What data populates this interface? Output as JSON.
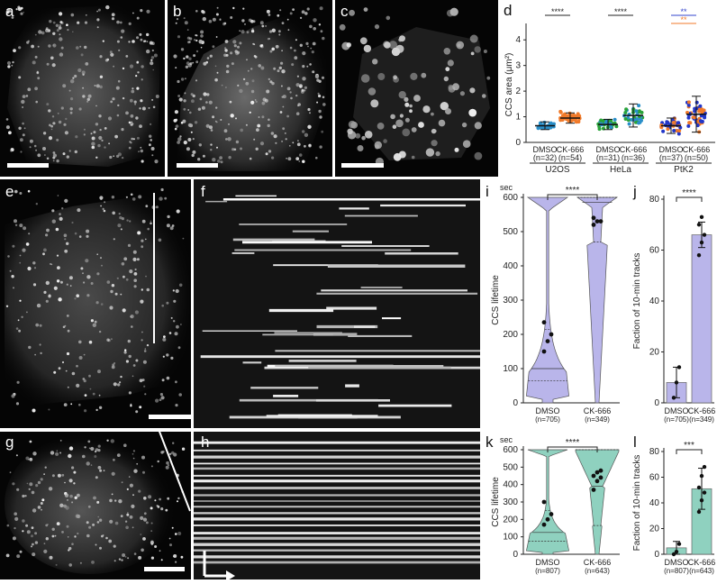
{
  "panel_labels": {
    "a": "a",
    "b": "b",
    "c": "c",
    "d": "d",
    "e": "e",
    "f": "f",
    "g": "g",
    "h": "h",
    "i": "i",
    "j": "j",
    "k": "k",
    "l": "l"
  },
  "colors": {
    "dmso_d": "#2a8fc9",
    "ck666_d": "#f07a2a",
    "green": "#29a339",
    "blue": "#2236c8",
    "violin_i": "#b9b5ea",
    "violin_k": "#8fd1bf",
    "bar_j": "#b9b5ea",
    "bar_l": "#8fd1bf",
    "sig_blue": "#3344cc",
    "sig_orange": "#f07a2a"
  },
  "chart_data": [
    {
      "id": "d",
      "type": "scatter",
      "ylabel": "CCS area (μm²)",
      "ylim": [
        0,
        4.5
      ],
      "yticks": [
        "0",
        "1",
        "2",
        "3",
        "4"
      ],
      "groups": [
        {
          "label": "U2OS",
          "conditions": [
            {
              "name": "DMSO",
              "n": "(n=32)",
              "mean": 0.65,
              "sd": 0.15,
              "count": 32,
              "color": "#2a8fc9"
            },
            {
              "name": "CK-666",
              "n": "(n=54)",
              "mean": 0.95,
              "sd": 0.2,
              "count": 54,
              "color": "#f07a2a"
            }
          ],
          "sig": "****"
        },
        {
          "label": "HeLa",
          "conditions": [
            {
              "name": "DMSO",
              "n": "(n=31)",
              "mean": 0.7,
              "sd": 0.2,
              "count": 31,
              "color": "#29a339"
            },
            {
              "name": "CK-666",
              "n": "(n=36)",
              "mean": 1.05,
              "sd": 0.45,
              "count": 36,
              "color": "#29a339"
            }
          ],
          "sig": "****"
        },
        {
          "label": "PtK2",
          "conditions": [
            {
              "name": "DMSO",
              "n": "(n=37)",
              "mean": 0.65,
              "sd": 0.3,
              "count": 37,
              "color": "#2236c8"
            },
            {
              "name": "CK-666",
              "n": "(n=50)",
              "mean": 1.1,
              "sd": 0.7,
              "count": 50,
              "color": "#2236c8"
            }
          ],
          "sig_blue": "**",
          "sig_orange": "**"
        }
      ]
    },
    {
      "id": "i",
      "type": "violin",
      "unit": "sec",
      "ylabel": "CCS lifetime",
      "ylim": [
        0,
        600
      ],
      "yticks": [
        "0",
        "100",
        "200",
        "300",
        "400",
        "500",
        "600"
      ],
      "categories": [
        "DMSO",
        "CK-666"
      ],
      "n": [
        "(n=705)",
        "(n=349)"
      ],
      "sig": "****",
      "quartiles": [
        [
          65,
          100,
          215
        ],
        [
          470,
          585,
          600
        ]
      ],
      "dots": [
        [
          150,
          180,
          200,
          235
        ],
        [
          520,
          530,
          530,
          540
        ]
      ]
    },
    {
      "id": "j",
      "type": "bar",
      "ylabel": "Faction of 10-min tracks",
      "ylim": [
        0,
        80
      ],
      "yticks": [
        "0",
        "20",
        "40",
        "60",
        "80"
      ],
      "categories": [
        "DMSO",
        "CK-666"
      ],
      "n": [
        "(n=705)",
        "(n=349)"
      ],
      "sig": "****",
      "values": [
        8,
        66
      ],
      "errors": [
        6,
        5
      ],
      "points": [
        [
          2,
          8,
          14
        ],
        [
          58,
          63,
          66,
          70,
          73
        ]
      ]
    },
    {
      "id": "k",
      "type": "violin",
      "unit": "sec",
      "ylabel": "CCS lifetime",
      "ylim": [
        0,
        600
      ],
      "yticks": [
        "0",
        "100",
        "200",
        "300",
        "400",
        "500",
        "600"
      ],
      "categories": [
        "DMSO",
        "CK-666"
      ],
      "n": [
        "(n=807)",
        "(n=643)"
      ],
      "sig": "****",
      "quartiles": [
        [
          75,
          125,
          250
        ],
        [
          165,
          390,
          600
        ]
      ],
      "dots": [
        [
          170,
          200,
          230,
          300
        ],
        [
          370,
          420,
          440,
          450,
          470,
          480
        ]
      ]
    },
    {
      "id": "l",
      "type": "bar",
      "ylabel": "Faction of 10-min tracks",
      "ylim": [
        0,
        80
      ],
      "yticks": [
        "0",
        "20",
        "40",
        "60",
        "80"
      ],
      "categories": [
        "DMSO",
        "CK-666"
      ],
      "n": [
        "(n=807)",
        "(n=643)"
      ],
      "sig": "***",
      "values": [
        5,
        51
      ],
      "errors": [
        5,
        16
      ],
      "points": [
        [
          0,
          2,
          8
        ],
        [
          33,
          42,
          48,
          52,
          61,
          68
        ]
      ]
    }
  ]
}
